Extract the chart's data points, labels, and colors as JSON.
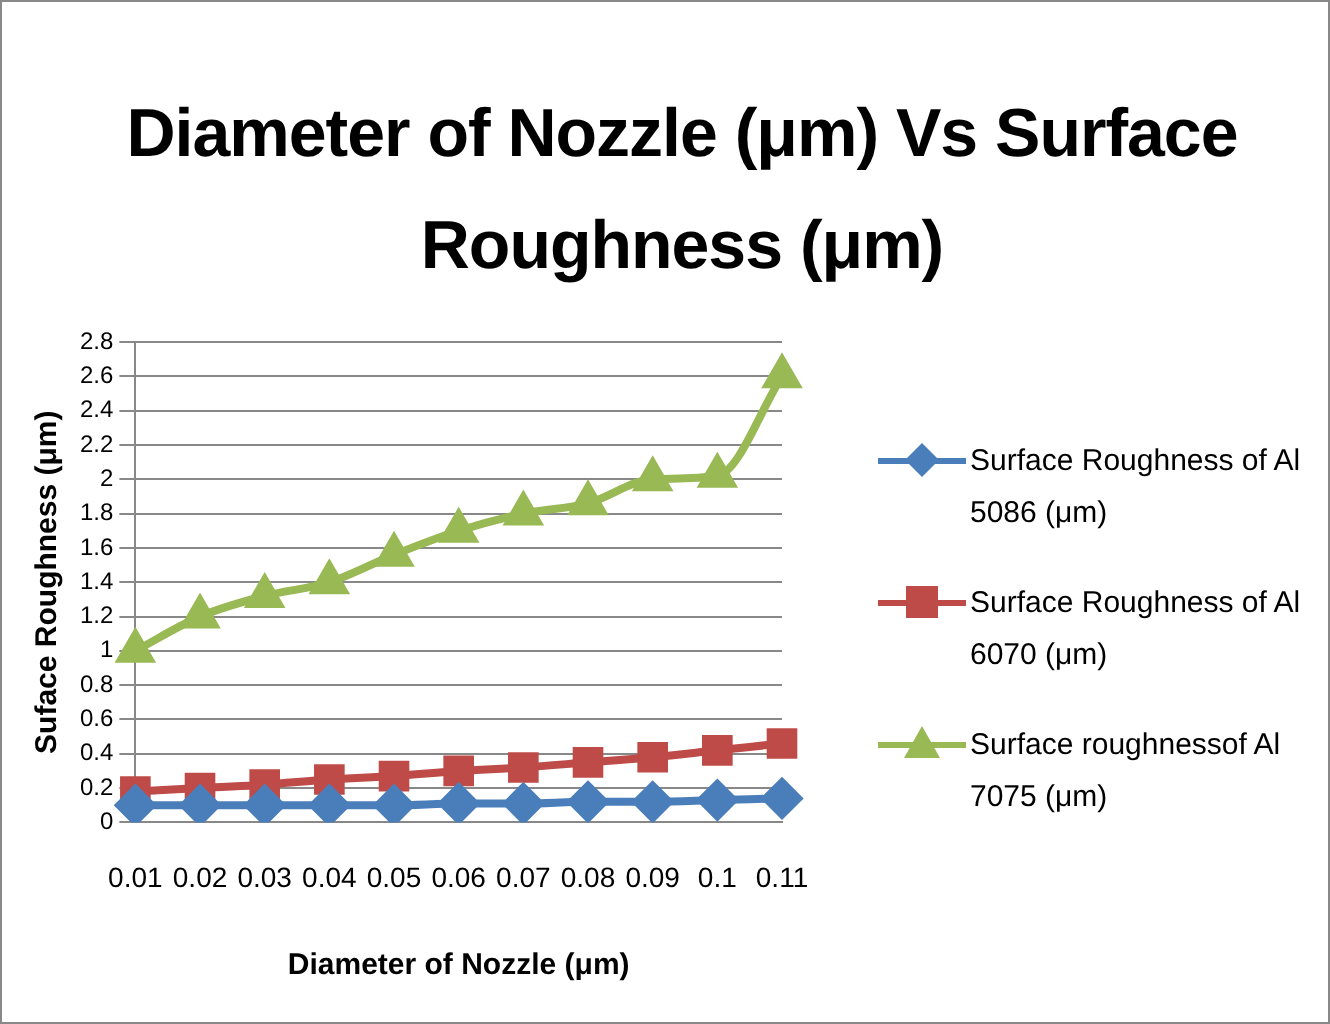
{
  "chart_data": {
    "type": "line",
    "title": "Diameter of Nozzle (μm) Vs Surface Roughness (μm)",
    "xlabel": "Diameter of Nozzle (μm)",
    "ylabel": "Suface Roughness (μm)",
    "categories": [
      "0.01",
      "0.02",
      "0.03",
      "0.04",
      "0.05",
      "0.06",
      "0.07",
      "0.08",
      "0.09",
      "0.1",
      "0.11"
    ],
    "series": [
      {
        "name": "Surface Roughness of Al 5086 (μm)",
        "color": "#4a7ebb",
        "marker": "diamond",
        "values": [
          0.1,
          0.1,
          0.1,
          0.1,
          0.1,
          0.11,
          0.11,
          0.12,
          0.12,
          0.13,
          0.14
        ]
      },
      {
        "name": "Surface Roughness of Al 6070 (μm)",
        "color": "#be4b48",
        "marker": "square",
        "values": [
          0.18,
          0.2,
          0.22,
          0.25,
          0.27,
          0.3,
          0.32,
          0.35,
          0.38,
          0.42,
          0.46
        ]
      },
      {
        "name": "Surface roughnessof Al 7075 (μm)",
        "color": "#98b954",
        "marker": "triangle",
        "values": [
          1.0,
          1.2,
          1.32,
          1.4,
          1.56,
          1.7,
          1.8,
          1.86,
          2.0,
          2.02,
          2.6
        ]
      }
    ],
    "ylim": [
      0,
      2.8
    ],
    "yticks": [
      0,
      0.2,
      0.4,
      0.6,
      0.8,
      1,
      1.2,
      1.4,
      1.6,
      1.8,
      2,
      2.2,
      2.4,
      2.6,
      2.8
    ],
    "grid": "y",
    "legend": "right",
    "line_style": "solid"
  }
}
